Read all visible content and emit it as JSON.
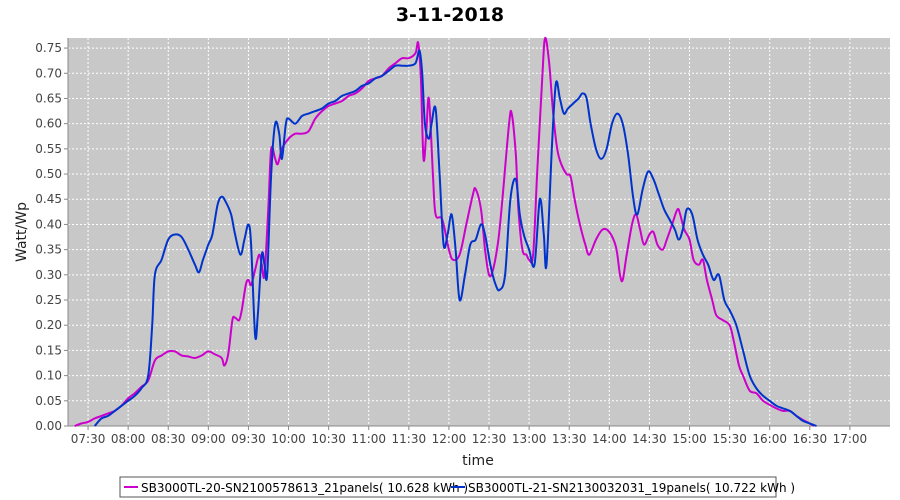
{
  "chart_data": {
    "type": "line",
    "title": "3-11-2018",
    "xlabel": "time",
    "ylabel": "Watt/Wp",
    "xlim": [
      "07:15",
      "17:30"
    ],
    "ylim": [
      0,
      0.77
    ],
    "x_ticks": [
      "07:30",
      "08:00",
      "08:30",
      "09:00",
      "09:30",
      "10:00",
      "10:30",
      "11:00",
      "11:30",
      "12:00",
      "12:30",
      "13:00",
      "13:30",
      "14:00",
      "14:30",
      "15:00",
      "15:30",
      "16:00",
      "16:30",
      "17:00"
    ],
    "y_ticks": [
      "0.00",
      "0.05",
      "0.10",
      "0.15",
      "0.20",
      "0.25",
      "0.30",
      "0.35",
      "0.40",
      "0.45",
      "0.50",
      "0.55",
      "0.60",
      "0.65",
      "0.70",
      "0.75"
    ],
    "grid": true,
    "legend_position": "bottom",
    "background_color": "#c8c8c8",
    "series": [
      {
        "name": "SB3000TL-20-SN2100578613_21panels( 10.628 kWh )",
        "color": "#cc00cc",
        "points": [
          [
            "07:20",
            0.0
          ],
          [
            "07:25",
            0.005
          ],
          [
            "07:30",
            0.008
          ],
          [
            "07:35",
            0.015
          ],
          [
            "07:40",
            0.02
          ],
          [
            "07:45",
            0.025
          ],
          [
            "07:50",
            0.03
          ],
          [
            "07:55",
            0.04
          ],
          [
            "08:00",
            0.055
          ],
          [
            "08:05",
            0.065
          ],
          [
            "08:10",
            0.078
          ],
          [
            "08:15",
            0.09
          ],
          [
            "08:20",
            0.13
          ],
          [
            "08:25",
            0.14
          ],
          [
            "08:30",
            0.148
          ],
          [
            "08:35",
            0.148
          ],
          [
            "08:40",
            0.14
          ],
          [
            "08:45",
            0.138
          ],
          [
            "08:50",
            0.135
          ],
          [
            "08:55",
            0.14
          ],
          [
            "09:00",
            0.148
          ],
          [
            "09:05",
            0.142
          ],
          [
            "09:10",
            0.135
          ],
          [
            "09:12",
            0.12
          ],
          [
            "09:15",
            0.145
          ],
          [
            "09:18",
            0.21
          ],
          [
            "09:20",
            0.215
          ],
          [
            "09:23",
            0.21
          ],
          [
            "09:25",
            0.23
          ],
          [
            "09:28",
            0.28
          ],
          [
            "09:30",
            0.29
          ],
          [
            "09:32",
            0.28
          ],
          [
            "09:35",
            0.31
          ],
          [
            "09:38",
            0.34
          ],
          [
            "09:40",
            0.32
          ],
          [
            "09:42",
            0.3
          ],
          [
            "09:45",
            0.44
          ],
          [
            "09:47",
            0.55
          ],
          [
            "09:50",
            0.53
          ],
          [
            "09:52",
            0.52
          ],
          [
            "09:55",
            0.55
          ],
          [
            "10:00",
            0.57
          ],
          [
            "10:05",
            0.58
          ],
          [
            "10:10",
            0.58
          ],
          [
            "10:15",
            0.585
          ],
          [
            "10:20",
            0.61
          ],
          [
            "10:25",
            0.625
          ],
          [
            "10:30",
            0.635
          ],
          [
            "10:35",
            0.64
          ],
          [
            "10:40",
            0.645
          ],
          [
            "10:45",
            0.655
          ],
          [
            "10:50",
            0.66
          ],
          [
            "10:55",
            0.67
          ],
          [
            "11:00",
            0.685
          ],
          [
            "11:05",
            0.69
          ],
          [
            "11:10",
            0.695
          ],
          [
            "11:15",
            0.71
          ],
          [
            "11:20",
            0.72
          ],
          [
            "11:25",
            0.73
          ],
          [
            "11:30",
            0.73
          ],
          [
            "11:35",
            0.74
          ],
          [
            "11:37",
            0.76
          ],
          [
            "11:39",
            0.69
          ],
          [
            "11:41",
            0.53
          ],
          [
            "11:43",
            0.58
          ],
          [
            "11:45",
            0.65
          ],
          [
            "11:48",
            0.5
          ],
          [
            "11:50",
            0.42
          ],
          [
            "11:55",
            0.41
          ],
          [
            "12:00",
            0.35
          ],
          [
            "12:03",
            0.33
          ],
          [
            "12:08",
            0.34
          ],
          [
            "12:13",
            0.4
          ],
          [
            "12:18",
            0.46
          ],
          [
            "12:20",
            0.47
          ],
          [
            "12:24",
            0.43
          ],
          [
            "12:27",
            0.35
          ],
          [
            "12:30",
            0.3
          ],
          [
            "12:33",
            0.31
          ],
          [
            "12:37",
            0.37
          ],
          [
            "12:40",
            0.45
          ],
          [
            "12:45",
            0.6
          ],
          [
            "12:47",
            0.62
          ],
          [
            "12:50",
            0.54
          ],
          [
            "12:52",
            0.43
          ],
          [
            "12:55",
            0.35
          ],
          [
            "12:58",
            0.34
          ],
          [
            "13:00",
            0.33
          ],
          [
            "13:03",
            0.34
          ],
          [
            "13:06",
            0.5
          ],
          [
            "13:10",
            0.7
          ],
          [
            "13:12",
            0.77
          ],
          [
            "13:15",
            0.72
          ],
          [
            "13:18",
            0.62
          ],
          [
            "13:21",
            0.55
          ],
          [
            "13:24",
            0.52
          ],
          [
            "13:28",
            0.5
          ],
          [
            "13:31",
            0.495
          ],
          [
            "13:34",
            0.45
          ],
          [
            "13:38",
            0.4
          ],
          [
            "13:42",
            0.36
          ],
          [
            "13:45",
            0.34
          ],
          [
            "13:50",
            0.37
          ],
          [
            "13:55",
            0.39
          ],
          [
            "14:00",
            0.385
          ],
          [
            "14:05",
            0.355
          ],
          [
            "14:08",
            0.3
          ],
          [
            "14:10",
            0.29
          ],
          [
            "14:13",
            0.34
          ],
          [
            "14:17",
            0.4
          ],
          [
            "14:20",
            0.42
          ],
          [
            "14:23",
            0.39
          ],
          [
            "14:26",
            0.36
          ],
          [
            "14:30",
            0.38
          ],
          [
            "14:33",
            0.385
          ],
          [
            "14:36",
            0.36
          ],
          [
            "14:40",
            0.35
          ],
          [
            "14:43",
            0.37
          ],
          [
            "14:47",
            0.4
          ],
          [
            "14:51",
            0.43
          ],
          [
            "14:53",
            0.42
          ],
          [
            "14:56",
            0.39
          ],
          [
            "15:00",
            0.37
          ],
          [
            "15:03",
            0.33
          ],
          [
            "15:07",
            0.32
          ],
          [
            "15:10",
            0.33
          ],
          [
            "15:13",
            0.29
          ],
          [
            "15:17",
            0.25
          ],
          [
            "15:20",
            0.22
          ],
          [
            "15:25",
            0.21
          ],
          [
            "15:30",
            0.2
          ],
          [
            "15:33",
            0.17
          ],
          [
            "15:37",
            0.12
          ],
          [
            "15:40",
            0.1
          ],
          [
            "15:45",
            0.07
          ],
          [
            "15:50",
            0.065
          ],
          [
            "15:55",
            0.05
          ],
          [
            "16:00",
            0.042
          ],
          [
            "16:05",
            0.035
          ],
          [
            "16:10",
            0.03
          ],
          [
            "16:15",
            0.03
          ],
          [
            "16:20",
            0.02
          ],
          [
            "16:25",
            0.012
          ],
          [
            "16:30",
            0.005
          ],
          [
            "16:33",
            0.0
          ]
        ]
      },
      {
        "name": "SB3000TL-21-SN2130032031_19panels( 10.722 kWh )",
        "color": "#0033cc",
        "points": [
          [
            "07:35",
            0.0
          ],
          [
            "07:40",
            0.015
          ],
          [
            "07:45",
            0.02
          ],
          [
            "07:50",
            0.03
          ],
          [
            "07:55",
            0.04
          ],
          [
            "08:00",
            0.05
          ],
          [
            "08:05",
            0.06
          ],
          [
            "08:10",
            0.075
          ],
          [
            "08:15",
            0.1
          ],
          [
            "08:18",
            0.2
          ],
          [
            "08:20",
            0.3
          ],
          [
            "08:25",
            0.33
          ],
          [
            "08:30",
            0.37
          ],
          [
            "08:35",
            0.38
          ],
          [
            "08:40",
            0.375
          ],
          [
            "08:45",
            0.35
          ],
          [
            "08:50",
            0.32
          ],
          [
            "08:53",
            0.305
          ],
          [
            "08:56",
            0.33
          ],
          [
            "09:00",
            0.36
          ],
          [
            "09:03",
            0.38
          ],
          [
            "09:07",
            0.44
          ],
          [
            "09:10",
            0.455
          ],
          [
            "09:13",
            0.445
          ],
          [
            "09:17",
            0.42
          ],
          [
            "09:20",
            0.38
          ],
          [
            "09:24",
            0.34
          ],
          [
            "09:27",
            0.37
          ],
          [
            "09:30",
            0.4
          ],
          [
            "09:32",
            0.36
          ],
          [
            "09:35",
            0.18
          ],
          [
            "09:37",
            0.22
          ],
          [
            "09:40",
            0.34
          ],
          [
            "09:42",
            0.32
          ],
          [
            "09:44",
            0.3
          ],
          [
            "09:47",
            0.5
          ],
          [
            "09:50",
            0.6
          ],
          [
            "09:53",
            0.58
          ],
          [
            "09:55",
            0.53
          ],
          [
            "09:58",
            0.6
          ],
          [
            "10:00",
            0.61
          ],
          [
            "10:05",
            0.6
          ],
          [
            "10:10",
            0.615
          ],
          [
            "10:15",
            0.62
          ],
          [
            "10:20",
            0.625
          ],
          [
            "10:25",
            0.63
          ],
          [
            "10:30",
            0.64
          ],
          [
            "10:35",
            0.645
          ],
          [
            "10:40",
            0.655
          ],
          [
            "10:45",
            0.66
          ],
          [
            "10:50",
            0.665
          ],
          [
            "10:55",
            0.675
          ],
          [
            "11:00",
            0.68
          ],
          [
            "11:05",
            0.69
          ],
          [
            "11:10",
            0.695
          ],
          [
            "11:15",
            0.705
          ],
          [
            "11:20",
            0.715
          ],
          [
            "11:25",
            0.715
          ],
          [
            "11:30",
            0.715
          ],
          [
            "11:35",
            0.72
          ],
          [
            "11:38",
            0.745
          ],
          [
            "11:40",
            0.7
          ],
          [
            "11:42",
            0.6
          ],
          [
            "11:45",
            0.57
          ],
          [
            "11:47",
            0.6
          ],
          [
            "11:50",
            0.63
          ],
          [
            "11:53",
            0.5
          ],
          [
            "11:56",
            0.36
          ],
          [
            "11:59",
            0.38
          ],
          [
            "12:02",
            0.42
          ],
          [
            "12:05",
            0.35
          ],
          [
            "12:08",
            0.25
          ],
          [
            "12:12",
            0.3
          ],
          [
            "12:16",
            0.36
          ],
          [
            "12:20",
            0.37
          ],
          [
            "12:24",
            0.4
          ],
          [
            "12:27",
            0.38
          ],
          [
            "12:31",
            0.32
          ],
          [
            "12:35",
            0.28
          ],
          [
            "12:38",
            0.27
          ],
          [
            "12:42",
            0.3
          ],
          [
            "12:46",
            0.45
          ],
          [
            "12:50",
            0.49
          ],
          [
            "12:53",
            0.42
          ],
          [
            "12:56",
            0.38
          ],
          [
            "13:00",
            0.35
          ],
          [
            "13:04",
            0.32
          ],
          [
            "13:08",
            0.45
          ],
          [
            "13:11",
            0.38
          ],
          [
            "13:13",
            0.32
          ],
          [
            "13:17",
            0.55
          ],
          [
            "13:20",
            0.68
          ],
          [
            "13:23",
            0.65
          ],
          [
            "13:26",
            0.62
          ],
          [
            "13:29",
            0.63
          ],
          [
            "13:33",
            0.64
          ],
          [
            "13:37",
            0.65
          ],
          [
            "13:40",
            0.66
          ],
          [
            "13:43",
            0.65
          ],
          [
            "13:46",
            0.6
          ],
          [
            "13:50",
            0.55
          ],
          [
            "13:54",
            0.53
          ],
          [
            "13:58",
            0.55
          ],
          [
            "14:02",
            0.6
          ],
          [
            "14:06",
            0.62
          ],
          [
            "14:10",
            0.6
          ],
          [
            "14:14",
            0.54
          ],
          [
            "14:18",
            0.45
          ],
          [
            "14:21",
            0.42
          ],
          [
            "14:25",
            0.47
          ],
          [
            "14:29",
            0.505
          ],
          [
            "14:33",
            0.49
          ],
          [
            "14:37",
            0.46
          ],
          [
            "14:41",
            0.43
          ],
          [
            "14:45",
            0.41
          ],
          [
            "14:49",
            0.39
          ],
          [
            "14:52",
            0.37
          ],
          [
            "14:55",
            0.39
          ],
          [
            "14:58",
            0.43
          ],
          [
            "15:02",
            0.42
          ],
          [
            "15:06",
            0.37
          ],
          [
            "15:10",
            0.34
          ],
          [
            "15:14",
            0.32
          ],
          [
            "15:18",
            0.29
          ],
          [
            "15:22",
            0.3
          ],
          [
            "15:26",
            0.25
          ],
          [
            "15:30",
            0.23
          ],
          [
            "15:35",
            0.2
          ],
          [
            "15:40",
            0.15
          ],
          [
            "15:45",
            0.1
          ],
          [
            "15:50",
            0.075
          ],
          [
            "15:55",
            0.06
          ],
          [
            "16:00",
            0.05
          ],
          [
            "16:05",
            0.04
          ],
          [
            "16:10",
            0.035
          ],
          [
            "16:15",
            0.03
          ],
          [
            "16:20",
            0.02
          ],
          [
            "16:25",
            0.01
          ],
          [
            "16:30",
            0.005
          ],
          [
            "16:35",
            0.0
          ]
        ]
      }
    ]
  }
}
